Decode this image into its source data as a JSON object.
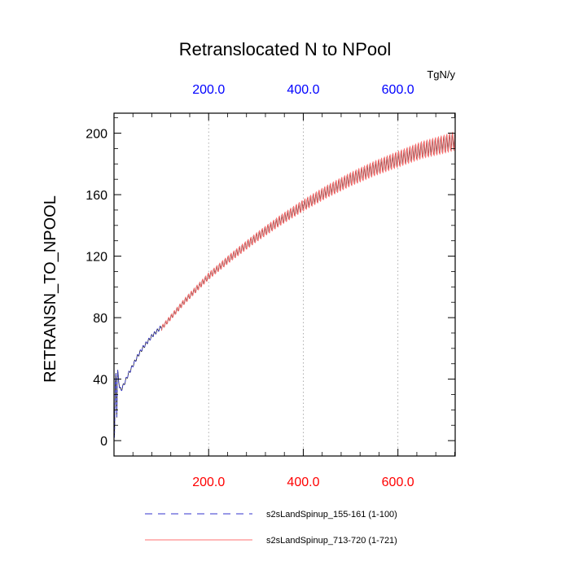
{
  "chart_data": {
    "type": "line",
    "title": "Retranslocated N to NPool",
    "ylabel": "RETRANSN_TO_NPOOL",
    "units": "TgN/y",
    "xlim": [
      0,
      721
    ],
    "ylim": [
      -10,
      213
    ],
    "y_ticks": [
      0,
      40,
      80,
      120,
      160,
      200
    ],
    "y_tick_labels": [
      "0",
      "40",
      "80",
      "120",
      "160",
      "200"
    ],
    "x_ticks": [
      200,
      400,
      600
    ],
    "x_tick_labels_bottom": [
      "200.0",
      "400.0",
      "600.0"
    ],
    "x_tick_labels_top": [
      "200.0",
      "400.0",
      "600.0"
    ],
    "grid": "vertical dotted at major x ticks",
    "colors": {
      "bottom_axis_labels": "#ff0000",
      "top_axis_labels": "#0000ff",
      "series_red": "#ff6f6f",
      "series_blue": "#3333cc",
      "black_line": "#000000"
    },
    "series": [
      {
        "name": "s2sLandSpinup_155-161 (1-100)",
        "style": "dashed",
        "color": "#3333cc",
        "x_range": [
          1,
          100
        ],
        "points": [
          [
            1,
            2
          ],
          [
            2,
            20
          ],
          [
            3,
            38
          ],
          [
            4,
            44
          ],
          [
            5,
            30
          ],
          [
            6,
            15
          ],
          [
            7,
            40
          ],
          [
            8,
            46
          ],
          [
            9,
            42
          ],
          [
            10,
            38
          ],
          [
            12,
            34
          ],
          [
            15,
            33
          ],
          [
            20,
            36
          ],
          [
            30,
            43
          ],
          [
            40,
            49
          ],
          [
            50,
            55
          ],
          [
            60,
            60
          ],
          [
            70,
            64
          ],
          [
            80,
            68
          ],
          [
            90,
            71
          ],
          [
            100,
            74
          ]
        ]
      },
      {
        "name": "s2sLandSpinup_713-720 (1-721)",
        "style": "solid",
        "color": "#ff6f6f",
        "x_range": [
          1,
          721
        ],
        "envelope_center": [
          [
            100,
            73
          ],
          [
            150,
            91
          ],
          [
            200,
            107
          ],
          [
            250,
            120
          ],
          [
            300,
            132
          ],
          [
            350,
            143
          ],
          [
            400,
            153
          ],
          [
            450,
            162
          ],
          [
            500,
            170
          ],
          [
            550,
            177
          ],
          [
            600,
            183
          ],
          [
            650,
            189
          ],
          [
            700,
            193
          ],
          [
            721,
            195
          ]
        ],
        "seasonal_amplitude_start": 1.5,
        "seasonal_amplitude_end": 6
      }
    ],
    "legend": {
      "placement": "bottom",
      "entries": [
        {
          "label": "s2sLandSpinup_155-161 (1-100)",
          "style": "dashed",
          "color": "#3333cc"
        },
        {
          "label": "s2sLandSpinup_713-720 (1-721)",
          "style": "solid",
          "color": "#ff6f6f"
        }
      ]
    }
  }
}
